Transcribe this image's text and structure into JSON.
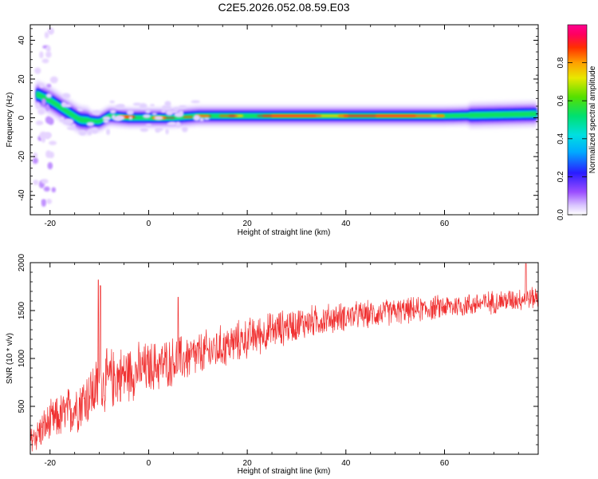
{
  "title": "C2E5.2026.052.08.59.E03",
  "colors": {
    "snr_line": "#f03030",
    "frame": "#000000",
    "background": "#ffffff"
  },
  "chart_data": [
    {
      "type": "heatmap",
      "xlabel": "Height of straight line (km)",
      "ylabel": "Frequency (Hz)",
      "xlim": [
        -24,
        79
      ],
      "ylim": [
        -50,
        48
      ],
      "xticks": [
        -20,
        0,
        20,
        40,
        60
      ],
      "yticks": [
        -40,
        -20,
        0,
        20,
        40
      ],
      "colorbar": {
        "label": "Normalized spectral amplitude",
        "range": [
          0,
          1
        ],
        "ticks": [
          "0.0",
          "0.2",
          "0.4",
          "0.6",
          "0.8"
        ],
        "colormap": "rainbow (white-purple-blue-cyan-green-yellow-orange-red-magenta)"
      },
      "ridge": {
        "description": "dominant frequency track",
        "points": [
          {
            "x": -22.5,
            "y": 12
          },
          {
            "x": -20,
            "y": 9
          },
          {
            "x": -17,
            "y": 4
          },
          {
            "x": -14,
            "y": -1
          },
          {
            "x": -10,
            "y": -2
          },
          {
            "x": -8,
            "y": 1
          },
          {
            "x": -4,
            "y": 0
          },
          {
            "x": 0,
            "y": 0
          },
          {
            "x": 5,
            "y": 0
          },
          {
            "x": 10,
            "y": 1
          },
          {
            "x": 20,
            "y": 1
          },
          {
            "x": 40,
            "y": 1
          },
          {
            "x": 60,
            "y": 1
          },
          {
            "x": 79,
            "y": 2
          }
        ],
        "peak_amplitude_region": [
          -6,
          60
        ]
      }
    },
    {
      "type": "line",
      "xlabel": "Height of straight line (km)",
      "ylabel": "SNR (10 * v/v)",
      "xlim": [
        -24,
        79
      ],
      "ylim": [
        0,
        2000
      ],
      "xticks": [
        -20,
        0,
        20,
        40,
        60
      ],
      "yticks": [
        500,
        1000,
        1500,
        2000
      ],
      "series": [
        {
          "trend": [
            {
              "x": -24,
              "y": 150
            },
            {
              "x": -20,
              "y": 330
            },
            {
              "x": -16,
              "y": 450
            },
            {
              "x": -12,
              "y": 620
            },
            {
              "x": -8,
              "y": 780
            },
            {
              "x": -4,
              "y": 850
            },
            {
              "x": 0,
              "y": 900
            },
            {
              "x": 5,
              "y": 970
            },
            {
              "x": 10,
              "y": 1030
            },
            {
              "x": 15,
              "y": 1120
            },
            {
              "x": 20,
              "y": 1210
            },
            {
              "x": 25,
              "y": 1290
            },
            {
              "x": 30,
              "y": 1360
            },
            {
              "x": 35,
              "y": 1400
            },
            {
              "x": 40,
              "y": 1440
            },
            {
              "x": 45,
              "y": 1460
            },
            {
              "x": 50,
              "y": 1490
            },
            {
              "x": 55,
              "y": 1510
            },
            {
              "x": 60,
              "y": 1540
            },
            {
              "x": 65,
              "y": 1560
            },
            {
              "x": 70,
              "y": 1590
            },
            {
              "x": 75,
              "y": 1620
            },
            {
              "x": 79,
              "y": 1640
            }
          ],
          "noise_halfwidth": [
            {
              "x": -24,
              "y": 160
            },
            {
              "x": -10,
              "y": 320
            },
            {
              "x": 0,
              "y": 260
            },
            {
              "x": 10,
              "y": 230
            },
            {
              "x": 20,
              "y": 200
            },
            {
              "x": 40,
              "y": 140
            },
            {
              "x": 60,
              "y": 120
            },
            {
              "x": 79,
              "y": 110
            }
          ],
          "spikes": [
            {
              "x": -10.2,
              "y": 1820
            },
            {
              "x": -9.8,
              "y": 1760
            },
            {
              "x": 6.0,
              "y": 1640
            },
            {
              "x": 76.5,
              "y": 1990
            }
          ]
        }
      ]
    }
  ]
}
